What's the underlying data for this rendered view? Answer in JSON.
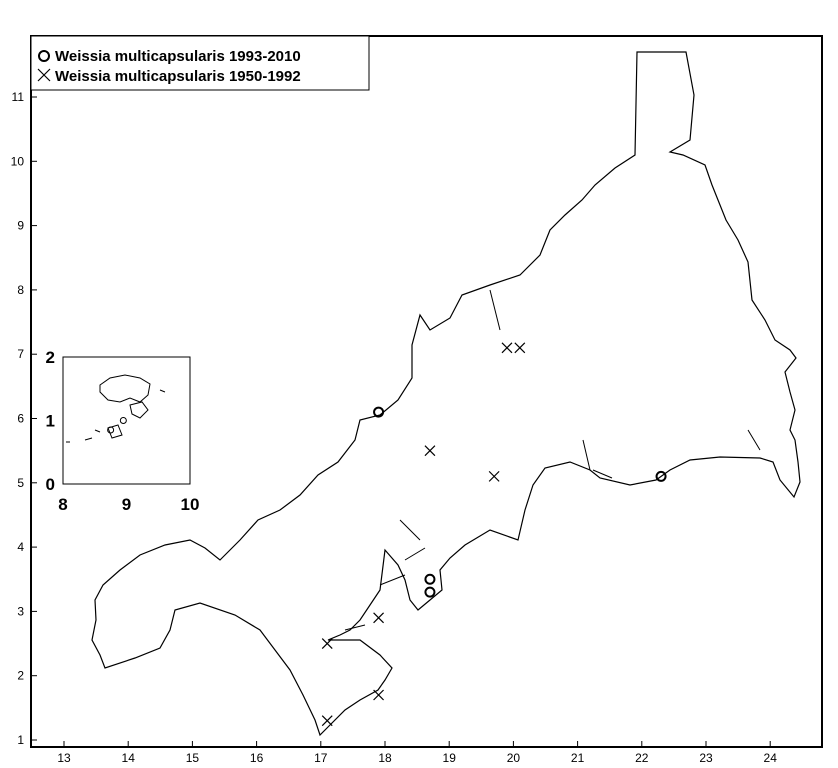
{
  "legend": {
    "entries": [
      {
        "symbol": "circle",
        "label": "Weissia multicapsularis 1993-2010"
      },
      {
        "symbol": "cross",
        "label": "Weissia multicapsularis 1950-1992"
      }
    ]
  },
  "x_ticks": [
    "13",
    "14",
    "15",
    "16",
    "17",
    "18",
    "19",
    "20",
    "21",
    "22",
    "23",
    "24"
  ],
  "y_ticks": [
    "1",
    "2",
    "3",
    "4",
    "5",
    "6",
    "7",
    "8",
    "9",
    "10",
    "11"
  ],
  "inset": {
    "x_ticks": [
      "8",
      "9",
      "10"
    ],
    "y_ticks": [
      "0",
      "1",
      "2"
    ],
    "points": [
      [
        8.95,
        1.0
      ],
      [
        8.75,
        0.85
      ]
    ]
  },
  "chart_data": {
    "type": "scatter",
    "xlim": [
      12.5,
      24.8
    ],
    "ylim": [
      0.9,
      12.0
    ],
    "grid": false,
    "legend_position": "top-left",
    "series": [
      {
        "name": "Weissia multicapsularis 1993-2010",
        "marker": "circle",
        "points": [
          [
            17.9,
            6.1
          ],
          [
            18.7,
            3.5
          ],
          [
            18.7,
            3.3
          ],
          [
            22.3,
            5.1
          ]
        ]
      },
      {
        "name": "Weissia multicapsularis 1950-1992",
        "marker": "cross",
        "points": [
          [
            19.9,
            7.1
          ],
          [
            20.1,
            7.1
          ],
          [
            18.7,
            5.5
          ],
          [
            19.7,
            5.1
          ],
          [
            17.9,
            2.9
          ],
          [
            17.1,
            2.5
          ],
          [
            17.9,
            1.7
          ],
          [
            17.1,
            1.3
          ]
        ]
      }
    ]
  }
}
